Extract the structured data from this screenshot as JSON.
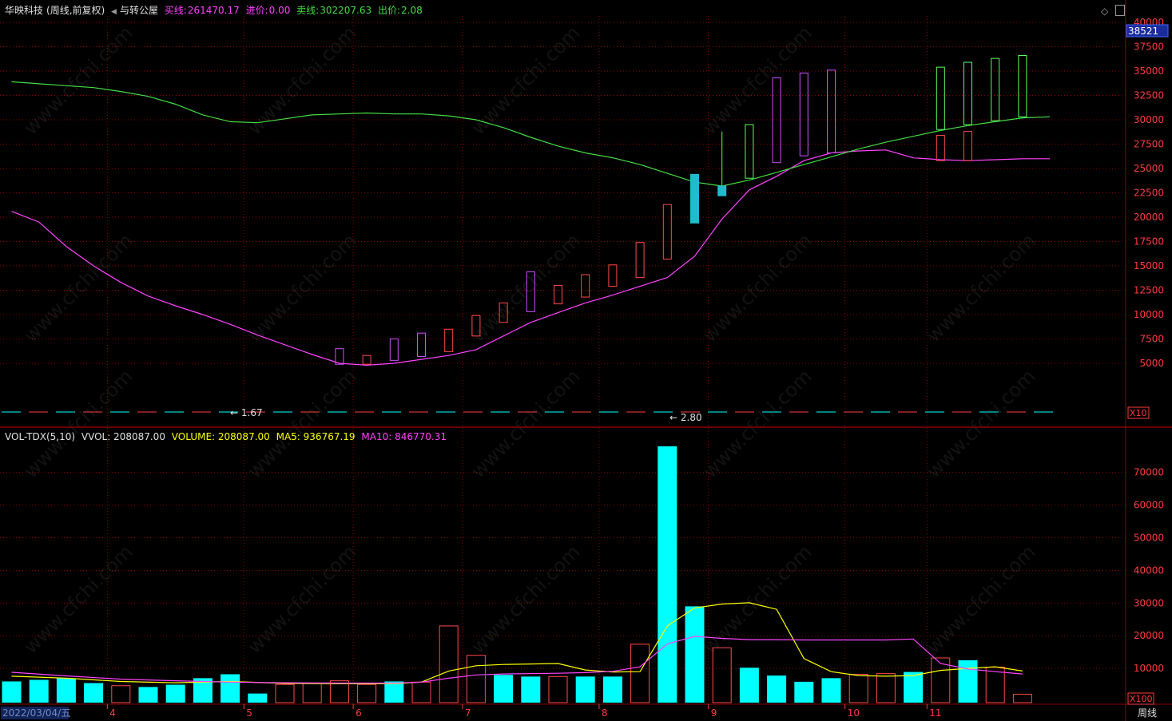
{
  "header": {
    "stock": "华映科技",
    "mode": "(周线,前复权)",
    "arrow": "◀",
    "indicator": "与转公屋",
    "buy_line_label": "买线:",
    "buy_line_value": "261470.17",
    "entry_label": "进价:",
    "entry_value": "0.00",
    "sell_line_label": "卖线:",
    "sell_line_value": "302207.63",
    "exit_label": "出价:",
    "exit_value": "2.08"
  },
  "vol_header": {
    "name": "VOL-TDX(5,10)",
    "vvol": "VVOL: 208087.00",
    "volume": "VOLUME: 208087.00",
    "ma5": "MA5: 936767.19",
    "ma10": "MA10: 846770.31"
  },
  "colors": {
    "up": "#ff4a4a",
    "down": "#00ffff",
    "violet": "#d050ff",
    "green": "#60ff60",
    "ma_green": "#44dd44",
    "ma_magenta": "#ff44ff",
    "ma_yellow": "#ffff00",
    "grid": "#8b0000",
    "axis_text": "#ff3c3c"
  },
  "price_labels": {
    "current": "38521",
    "scale_badge": "X10",
    "low_mark": "← 1.67",
    "mid_mark": "← 2.80"
  },
  "vol_labels": {
    "scale_badge": "X100",
    "period": "周线"
  },
  "x_labels": [
    "2022/03/04/五",
    "4",
    "5",
    "6",
    "7",
    "8",
    "9",
    "10",
    "11"
  ],
  "watermark": "www.cfchi.com",
  "chart_data": [
    {
      "type": "candlestick",
      "title": "华映科技 (周线,前复权)",
      "ylim": [
        0,
        40000
      ],
      "yticks": [
        5000,
        7500,
        10000,
        12500,
        15000,
        17500,
        20000,
        22500,
        25000,
        27500,
        30000,
        32500,
        35000,
        37500,
        40000
      ],
      "candles": [
        {
          "x": 12,
          "open": 4900,
          "close": 6500,
          "color": "violet"
        },
        {
          "x": 13,
          "open": 4900,
          "close": 5800,
          "color": "up"
        },
        {
          "x": 14,
          "open": 5300,
          "close": 7500,
          "color": "violet"
        },
        {
          "x": 15,
          "open": 5700,
          "close": 8100,
          "color": "violet"
        },
        {
          "x": 16,
          "open": 6200,
          "close": 8500,
          "color": "up"
        },
        {
          "x": 17,
          "open": 7800,
          "close": 9900,
          "color": "up"
        },
        {
          "x": 18,
          "open": 9200,
          "close": 11200,
          "color": "up"
        },
        {
          "x": 19,
          "open": 10300,
          "close": 14400,
          "color": "violet"
        },
        {
          "x": 20,
          "open": 11100,
          "close": 13000,
          "color": "up"
        },
        {
          "x": 21,
          "open": 11800,
          "close": 14100,
          "color": "up"
        },
        {
          "x": 22,
          "open": 12900,
          "close": 15100,
          "color": "up"
        },
        {
          "x": 23,
          "open": 13800,
          "close": 17400,
          "color": "up"
        },
        {
          "x": 24,
          "open": 15700,
          "close": 21300,
          "color": "up"
        },
        {
          "x": 25,
          "open": 24400,
          "close": 19400,
          "color": "down"
        },
        {
          "x": 26,
          "open": 23200,
          "close": 22200,
          "color": "down",
          "high": 28800
        },
        {
          "x": 27,
          "open": 24000,
          "close": 29500,
          "color": "green"
        },
        {
          "x": 28,
          "open": 25600,
          "close": 34300,
          "color": "violet"
        },
        {
          "x": 29,
          "open": 26300,
          "close": 34800,
          "color": "violet"
        },
        {
          "x": 30,
          "open": 26600,
          "close": 35100,
          "color": "violet"
        },
        {
          "x": 34,
          "open": 25800,
          "close": 28400,
          "color": "up"
        },
        {
          "x": 34,
          "open": 29000,
          "close": 35400,
          "color": "green"
        },
        {
          "x": 35,
          "open": 25800,
          "close": 28800,
          "color": "up"
        },
        {
          "x": 35,
          "open": 29500,
          "close": 35900,
          "color": "green"
        },
        {
          "x": 36,
          "open": 29900,
          "close": 36300,
          "color": "green"
        },
        {
          "x": 37,
          "open": 30300,
          "close": 36600,
          "color": "green"
        }
      ],
      "lines": [
        {
          "name": "buy-line",
          "color": "ma_magenta",
          "points": [
            [
              0,
              20600
            ],
            [
              1,
              19500
            ],
            [
              2,
              17000
            ],
            [
              3,
              15000
            ],
            [
              4,
              13300
            ],
            [
              5,
              11900
            ],
            [
              6,
              10900
            ],
            [
              7,
              10000
            ],
            [
              8,
              9000
            ],
            [
              9,
              7900
            ],
            [
              10,
              6900
            ],
            [
              11,
              5900
            ],
            [
              12,
              5000
            ],
            [
              13,
              4800
            ],
            [
              14,
              5000
            ],
            [
              15,
              5400
            ],
            [
              16,
              5800
            ],
            [
              17,
              6400
            ],
            [
              18,
              7800
            ],
            [
              19,
              9200
            ],
            [
              20,
              10200
            ],
            [
              21,
              11200
            ],
            [
              22,
              12000
            ],
            [
              23,
              12900
            ],
            [
              24,
              13800
            ],
            [
              25,
              16000
            ],
            [
              26,
              19800
            ],
            [
              27,
              22800
            ],
            [
              28,
              24200
            ],
            [
              29,
              25800
            ],
            [
              30,
              26600
            ],
            [
              31,
              26800
            ],
            [
              32,
              26900
            ],
            [
              33,
              26100
            ],
            [
              34,
              25900
            ],
            [
              35,
              25800
            ],
            [
              36,
              25900
            ],
            [
              37,
              26000
            ],
            [
              38,
              26000
            ]
          ]
        },
        {
          "name": "sell-line",
          "color": "ma_green",
          "points": [
            [
              0,
              33900
            ],
            [
              1,
              33700
            ],
            [
              2,
              33500
            ],
            [
              3,
              33300
            ],
            [
              4,
              32900
            ],
            [
              5,
              32400
            ],
            [
              6,
              31600
            ],
            [
              7,
              30500
            ],
            [
              8,
              29800
            ],
            [
              9,
              29700
            ],
            [
              10,
              30100
            ],
            [
              11,
              30500
            ],
            [
              12,
              30600
            ],
            [
              13,
              30700
            ],
            [
              14,
              30600
            ],
            [
              15,
              30600
            ],
            [
              16,
              30400
            ],
            [
              17,
              30000
            ],
            [
              18,
              29200
            ],
            [
              19,
              28200
            ],
            [
              20,
              27300
            ],
            [
              21,
              26600
            ],
            [
              22,
              26100
            ],
            [
              23,
              25400
            ],
            [
              24,
              24500
            ],
            [
              25,
              23600
            ],
            [
              26,
              23200
            ],
            [
              27,
              23800
            ],
            [
              28,
              24600
            ],
            [
              29,
              25400
            ],
            [
              30,
              26200
            ],
            [
              31,
              27000
            ],
            [
              32,
              27700
            ],
            [
              33,
              28300
            ],
            [
              34,
              28900
            ],
            [
              35,
              29400
            ],
            [
              36,
              29800
            ],
            [
              37,
              30200
            ],
            [
              38,
              30300
            ]
          ]
        }
      ]
    },
    {
      "type": "bar",
      "title": "VOL-TDX(5,10)",
      "ylim": [
        0,
        80000
      ],
      "yticks": [
        10000,
        20000,
        30000,
        40000,
        50000,
        60000,
        70000
      ],
      "bars": [
        {
          "x": 0,
          "value": 6000,
          "dir": "down"
        },
        {
          "x": 1,
          "value": 6500,
          "dir": "down"
        },
        {
          "x": 2,
          "value": 7000,
          "dir": "down"
        },
        {
          "x": 3,
          "value": 5500,
          "dir": "down"
        },
        {
          "x": 4,
          "value": 4700,
          "dir": "up"
        },
        {
          "x": 5,
          "value": 4300,
          "dir": "down"
        },
        {
          "x": 6,
          "value": 5000,
          "dir": "down"
        },
        {
          "x": 7,
          "value": 7000,
          "dir": "down"
        },
        {
          "x": 8,
          "value": 8200,
          "dir": "down"
        },
        {
          "x": 9,
          "value": 2300,
          "dir": "down"
        },
        {
          "x": 10,
          "value": 5100,
          "dir": "up"
        },
        {
          "x": 11,
          "value": 5400,
          "dir": "up"
        },
        {
          "x": 12,
          "value": 6200,
          "dir": "up"
        },
        {
          "x": 13,
          "value": 5100,
          "dir": "up"
        },
        {
          "x": 14,
          "value": 6000,
          "dir": "down"
        },
        {
          "x": 15,
          "value": 5800,
          "dir": "up"
        },
        {
          "x": 16,
          "value": 23000,
          "dir": "up"
        },
        {
          "x": 17,
          "value": 14000,
          "dir": "up"
        },
        {
          "x": 18,
          "value": 8000,
          "dir": "down"
        },
        {
          "x": 19,
          "value": 7500,
          "dir": "down"
        },
        {
          "x": 20,
          "value": 7500,
          "dir": "up"
        },
        {
          "x": 21,
          "value": 7500,
          "dir": "down"
        },
        {
          "x": 22,
          "value": 7500,
          "dir": "down"
        },
        {
          "x": 23,
          "value": 17400,
          "dir": "up"
        },
        {
          "x": 24,
          "value": 78000,
          "dir": "down"
        },
        {
          "x": 25,
          "value": 29000,
          "dir": "down"
        },
        {
          "x": 26,
          "value": 16300,
          "dir": "up"
        },
        {
          "x": 27,
          "value": 10200,
          "dir": "down"
        },
        {
          "x": 28,
          "value": 7800,
          "dir": "down"
        },
        {
          "x": 29,
          "value": 5900,
          "dir": "down"
        },
        {
          "x": 30,
          "value": 7000,
          "dir": "down"
        },
        {
          "x": 31,
          "value": 8200,
          "dir": "up"
        },
        {
          "x": 32,
          "value": 8400,
          "dir": "up"
        },
        {
          "x": 33,
          "value": 8900,
          "dir": "down"
        },
        {
          "x": 34,
          "value": 13200,
          "dir": "up"
        },
        {
          "x": 35,
          "value": 12500,
          "dir": "down"
        },
        {
          "x": 36,
          "value": 10400,
          "dir": "up"
        },
        {
          "x": 37,
          "value": 2100,
          "dir": "up"
        }
      ],
      "lines": [
        {
          "name": "MA5",
          "color": "ma_yellow",
          "points": [
            [
              0,
              7600
            ],
            [
              2,
              7000
            ],
            [
              4,
              6000
            ],
            [
              6,
              5600
            ],
            [
              8,
              6000
            ],
            [
              10,
              5400
            ],
            [
              12,
              5300
            ],
            [
              14,
              5300
            ],
            [
              15,
              5800
            ],
            [
              16,
              9200
            ],
            [
              17,
              10800
            ],
            [
              18,
              11200
            ],
            [
              20,
              11500
            ],
            [
              21,
              9500
            ],
            [
              22,
              8900
            ],
            [
              23,
              9000
            ],
            [
              24,
              23000
            ],
            [
              25,
              28500
            ],
            [
              26,
              29700
            ],
            [
              27,
              30100
            ],
            [
              28,
              28100
            ],
            [
              29,
              13000
            ],
            [
              30,
              9000
            ],
            [
              31,
              7800
            ],
            [
              32,
              7600
            ],
            [
              33,
              7800
            ],
            [
              34,
              9400
            ],
            [
              35,
              10000
            ],
            [
              36,
              10500
            ],
            [
              37,
              9200
            ]
          ]
        },
        {
          "name": "MA10",
          "color": "ma_magenta",
          "points": [
            [
              0,
              8800
            ],
            [
              2,
              7700
            ],
            [
              4,
              6700
            ],
            [
              6,
              6200
            ],
            [
              8,
              5800
            ],
            [
              10,
              5600
            ],
            [
              12,
              5500
            ],
            [
              14,
              5500
            ],
            [
              15,
              5800
            ],
            [
              16,
              7000
            ],
            [
              17,
              8000
            ],
            [
              18,
              8300
            ],
            [
              20,
              8500
            ],
            [
              21,
              8700
            ],
            [
              22,
              9100
            ],
            [
              23,
              10500
            ],
            [
              24,
              17500
            ],
            [
              25,
              19800
            ],
            [
              26,
              19200
            ],
            [
              27,
              18800
            ],
            [
              28,
              18800
            ],
            [
              29,
              18700
            ],
            [
              30,
              18700
            ],
            [
              31,
              18700
            ],
            [
              32,
              18700
            ],
            [
              33,
              19000
            ],
            [
              34,
              11500
            ],
            [
              35,
              9800
            ],
            [
              36,
              9000
            ],
            [
              37,
              8300
            ]
          ]
        }
      ]
    }
  ]
}
